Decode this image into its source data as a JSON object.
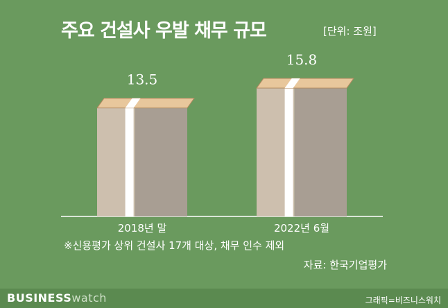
{
  "header": {
    "title": "주요 건설사 우발 채무 규모",
    "unit": "[단위: 조원]"
  },
  "chart_data": {
    "type": "bar",
    "title": "주요 건설사 우발 채무 규모",
    "xlabel": "",
    "ylabel": "",
    "categories": [
      "2018년 말",
      "2022년 6월"
    ],
    "values": [
      13.5,
      15.8
    ],
    "value_labels": [
      "13.5",
      "15.8"
    ],
    "ylim": [
      0,
      17
    ],
    "grid": false,
    "legend": "none"
  },
  "notes": {
    "footnote": "※신용평가 상위 건설사 17개 대상, 채무 인수 제외",
    "source": "자료: 한국기업평가"
  },
  "brand": {
    "logo_bold": "BUSINESS",
    "logo_light": "watch",
    "credit": "그래픽=비즈니스워치"
  },
  "colors": {
    "background": "#6a9a5e",
    "stack_front": "#cdbfae",
    "stack_side": "#a89e93",
    "band": "#ffffff",
    "bill_top": "#e8c79c"
  }
}
